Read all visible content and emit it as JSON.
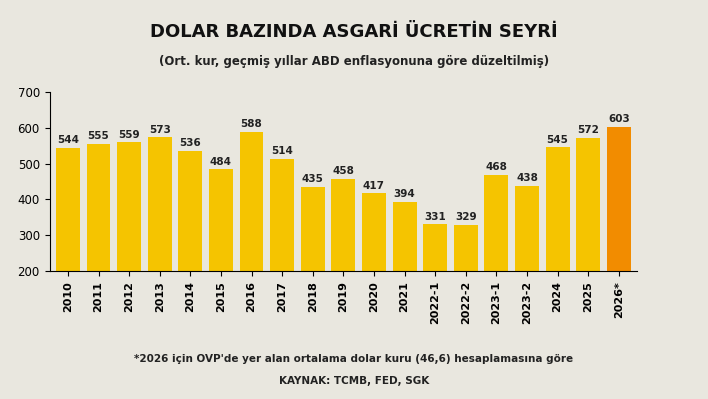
{
  "chart_data": {
    "type": "bar",
    "title": "DOLAR BAZINDA ASGARİ ÜCRETİN SEYRİ",
    "subtitle": "(Ort. kur, geçmiş yıllar ABD enflasyonuna göre düzeltilmiş)",
    "categories": [
      "2010",
      "2011",
      "2012",
      "2013",
      "2014",
      "2015",
      "2016",
      "2017",
      "2018",
      "2019",
      "2020",
      "2021",
      "2022-1",
      "2022-2",
      "2023-1",
      "2023-2",
      "2024",
      "2025",
      "2026*"
    ],
    "values": [
      544,
      555,
      559,
      573,
      536,
      484,
      588,
      514,
      435,
      458,
      417,
      394,
      331,
      329,
      468,
      438,
      545,
      572,
      603
    ],
    "colors": [
      "#f5c400",
      "#f5c400",
      "#f5c400",
      "#f5c400",
      "#f5c400",
      "#f5c400",
      "#f5c400",
      "#f5c400",
      "#f5c400",
      "#f5c400",
      "#f5c400",
      "#f5c400",
      "#f5c400",
      "#f5c400",
      "#f5c400",
      "#f5c400",
      "#f5c400",
      "#f5c400",
      "#f28c00"
    ],
    "ylim": [
      200,
      700
    ],
    "yticks": [
      200,
      300,
      400,
      500,
      600,
      700
    ],
    "grid": false,
    "data_labels": true,
    "annotations": [
      "*2026 için OVP'de yer alan ortalama dolar kuru (46,6) hesaplamasına göre",
      "KAYNAK: TCMB, FED, SGK"
    ]
  }
}
